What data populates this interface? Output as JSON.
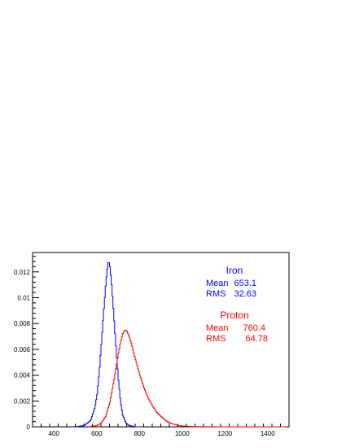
{
  "chart_data": {
    "type": "line",
    "xlabel": "",
    "ylabel": "",
    "xlim": [
      300,
      1500
    ],
    "ylim": [
      0,
      0.0135
    ],
    "x_ticks": [
      400,
      600,
      800,
      1000,
      1200,
      1400
    ],
    "y_ticks": [
      0,
      0.002,
      0.004,
      0.006,
      0.008,
      0.01,
      0.012
    ],
    "series": [
      {
        "name": "Iron",
        "color": "#0000ff",
        "x": [
          500,
          540,
          570,
          590,
          600,
          610,
          620,
          630,
          640,
          645,
          650,
          653,
          656,
          660,
          665,
          670,
          680,
          690,
          700,
          710,
          720,
          735,
          750,
          780,
          800
        ],
        "y": [
          0,
          0.0001,
          0.0005,
          0.0015,
          0.0025,
          0.0042,
          0.0064,
          0.0087,
          0.0109,
          0.0118,
          0.0125,
          0.0128,
          0.0127,
          0.0124,
          0.0116,
          0.0106,
          0.0082,
          0.0058,
          0.0036,
          0.0019,
          0.0009,
          0.0003,
          0.0001,
          0,
          0
        ],
        "stats": {
          "title": "Iron",
          "mean_label": "Mean",
          "mean": "653.1",
          "rms_label": "RMS",
          "rms": "32.63"
        }
      },
      {
        "name": "Proton",
        "color": "#ff0000",
        "x": [
          560,
          600,
          620,
          640,
          660,
          680,
          700,
          710,
          720,
          730,
          740,
          750,
          760,
          780,
          800,
          820,
          840,
          860,
          880,
          900,
          920,
          940,
          960,
          980,
          1000,
          1050,
          1100,
          1200,
          1480
        ],
        "y": [
          0,
          0.0001,
          0.0003,
          0.0008,
          0.0019,
          0.0037,
          0.0057,
          0.0066,
          0.0072,
          0.0075,
          0.0074,
          0.007,
          0.0065,
          0.0052,
          0.004,
          0.003,
          0.0022,
          0.0016,
          0.0011,
          0.0008,
          0.0005,
          0.0003,
          0.0002,
          0.0001,
          6e-05,
          2e-05,
          1e-05,
          0,
          0
        ],
        "stats": {
          "title": "Proton",
          "mean_label": "Mean",
          "mean": "760.4",
          "rms_label": "RMS",
          "rms": "64.78"
        }
      }
    ]
  },
  "y_tick_labels": [
    "0",
    "0.002",
    "0.004",
    "0.006",
    "0.008",
    "0.01",
    "0.012"
  ],
  "x_tick_labels": [
    "400",
    "600",
    "800",
    "1000",
    "1200",
    "1400"
  ]
}
